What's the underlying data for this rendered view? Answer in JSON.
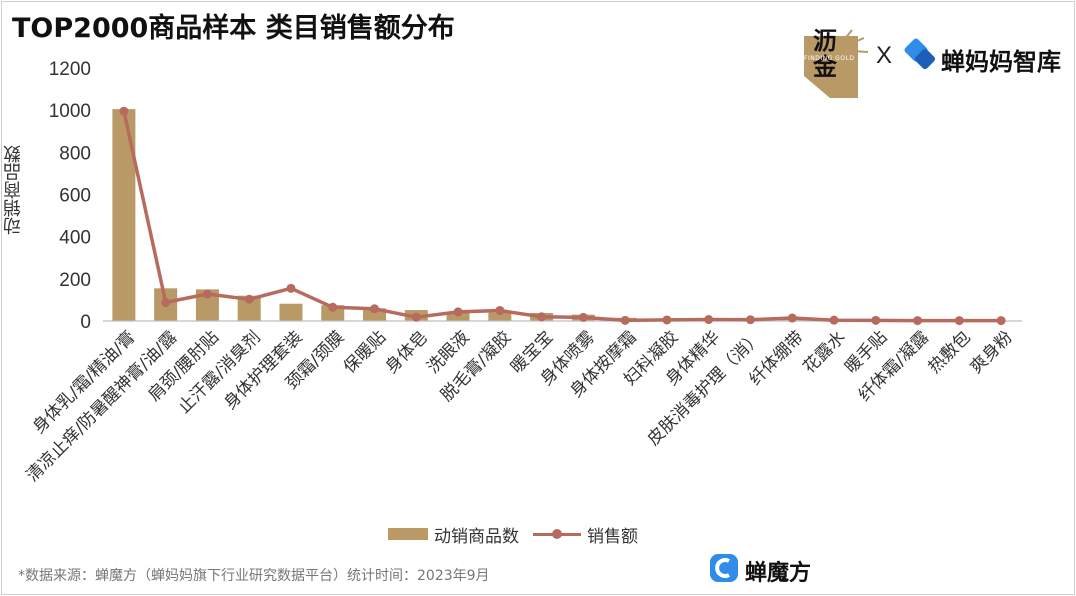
{
  "title": "TOP2000商品样本 类目销售额分布",
  "brand": {
    "lijin_text": "沥金",
    "lijin_sub": "FINDING GOLD",
    "separator": "X",
    "chanmama_name": "蝉妈妈智库"
  },
  "footer": {
    "source": "*数据来源：蝉魔方（蝉妈妈旗下行业研究数据平台）统计时间：2023年9月",
    "brand_name": "蝉魔方"
  },
  "colors": {
    "bar": "#b99a66",
    "line": "#b76a5e",
    "axis": "#bfbfbf"
  },
  "chart_data": {
    "type": "bar",
    "title": "TOP2000商品样本 类目销售额分布",
    "ylabel": "动销商品数",
    "ylim": [
      0,
      1200
    ],
    "yticks": [
      0,
      200,
      400,
      600,
      800,
      1000,
      1200
    ],
    "grid": false,
    "legend_position": "bottom",
    "categories": [
      "身体乳/霜/精油/膏",
      "清凉止痒/防暑醒神膏/油/露",
      "肩颈/腰肘贴",
      "止汗露/消臭剂",
      "身体护理套装",
      "颈霜/颈膜",
      "保暖贴",
      "身体皂",
      "洗眼液",
      "脱毛膏/凝胶",
      "暖宝宝",
      "身体喷雾",
      "身体按摩霜",
      "妇科凝胶",
      "身体精华",
      "皮肤消毒护理（消）",
      "纤体绷带",
      "花露水",
      "暖手贴",
      "纤体霜/凝露",
      "热敷包",
      "爽身粉"
    ],
    "series": [
      {
        "name": "动销商品数",
        "type": "bar",
        "values": [
          1005,
          155,
          150,
          120,
          82,
          75,
          60,
          52,
          42,
          40,
          38,
          30,
          15,
          7,
          6,
          5,
          4,
          3,
          3,
          2,
          2,
          1
        ]
      },
      {
        "name": "销售额",
        "type": "line",
        "values": [
          995,
          88,
          128,
          103,
          155,
          65,
          58,
          18,
          43,
          50,
          20,
          17,
          3,
          5,
          7,
          6,
          14,
          4,
          3,
          2,
          2,
          2
        ]
      }
    ]
  }
}
